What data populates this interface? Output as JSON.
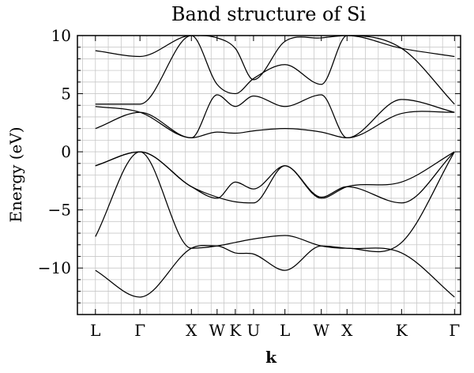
{
  "chart_data": {
    "type": "line",
    "title": "Band structure of Si",
    "xlabel": "k",
    "ylabel": "Energy (eV)",
    "ylim": [
      -14,
      10
    ],
    "yticks": [
      10,
      5,
      0,
      -5,
      -10
    ],
    "ytick_labels": [
      "10",
      "5",
      "0",
      "−5",
      "−10"
    ],
    "grid": true,
    "kpath": [
      "L",
      "Γ",
      "X",
      "W",
      "K",
      "U",
      "L",
      "W",
      "X",
      "K",
      "Γ"
    ],
    "kpath_positions": [
      0,
      0.866,
      1.866,
      2.366,
      2.72,
      3.074,
      3.685,
      4.392,
      4.892,
      5.953,
      6.982
    ],
    "xlim": [
      -0.35,
      7.1
    ],
    "series": [
      {
        "x": [
          0,
          0.866,
          1.866,
          2.366,
          2.72,
          3.074,
          3.685,
          4.392,
          4.892,
          5.953,
          6.982
        ],
        "y": [
          -10.2,
          -12.5,
          -8.3,
          -8.1,
          -8.7,
          -8.8,
          -10.2,
          -8.1,
          -8.3,
          -8.7,
          -12.5
        ]
      },
      {
        "x": [
          0,
          0.866,
          1.866,
          2.366,
          2.72,
          3.074,
          3.685,
          4.392,
          4.892,
          5.953,
          6.982
        ],
        "y": [
          -7.3,
          0.0,
          -8.3,
          -8.1,
          -7.8,
          -7.5,
          -7.2,
          -8.1,
          -8.3,
          -7.8,
          0.0
        ]
      },
      {
        "x": [
          0,
          0.866,
          1.866,
          2.366,
          2.72,
          3.074,
          3.685,
          4.392,
          4.892,
          5.953,
          6.982
        ],
        "y": [
          -1.2,
          0.0,
          -3.0,
          -3.9,
          -4.3,
          -4.4,
          -1.2,
          -3.9,
          -3.0,
          -4.4,
          0.0
        ]
      },
      {
        "x": [
          0,
          0.866,
          1.866,
          2.366,
          2.72,
          3.074,
          3.685,
          4.392,
          4.892,
          5.953,
          6.982
        ],
        "y": [
          -1.2,
          0.0,
          -3.0,
          -4.0,
          -2.6,
          -3.2,
          -1.2,
          -4.0,
          -3.0,
          -2.6,
          0.0
        ]
      },
      {
        "x": [
          0,
          0.866,
          1.866,
          2.366,
          2.72,
          3.074,
          3.685,
          4.392,
          4.892,
          5.953,
          6.982
        ],
        "y": [
          2.0,
          3.4,
          1.2,
          1.7,
          1.6,
          1.8,
          2.0,
          1.7,
          1.2,
          3.3,
          3.4
        ]
      },
      {
        "x": [
          0,
          0.866,
          1.866,
          2.366,
          2.72,
          3.074,
          3.685,
          4.392,
          4.892,
          5.953,
          6.982
        ],
        "y": [
          3.9,
          3.4,
          1.2,
          4.9,
          3.9,
          4.8,
          3.9,
          4.9,
          1.2,
          4.5,
          3.4
        ]
      },
      {
        "x": [
          0,
          0.866,
          1.866,
          2.366,
          2.72,
          3.074,
          3.685,
          4.392,
          4.892,
          5.953,
          6.982
        ],
        "y": [
          4.1,
          4.1,
          10.0,
          5.8,
          5.0,
          6.3,
          7.5,
          5.8,
          10.0,
          8.9,
          4.1
        ]
      },
      {
        "x": [
          0,
          0.866,
          1.866,
          2.366,
          2.72,
          3.074,
          3.685,
          4.392,
          4.892,
          5.953,
          6.982
        ],
        "y": [
          8.7,
          8.2,
          10.0,
          9.8,
          8.9,
          6.2,
          9.5,
          9.8,
          10.0,
          8.9,
          8.2
        ]
      }
    ]
  }
}
